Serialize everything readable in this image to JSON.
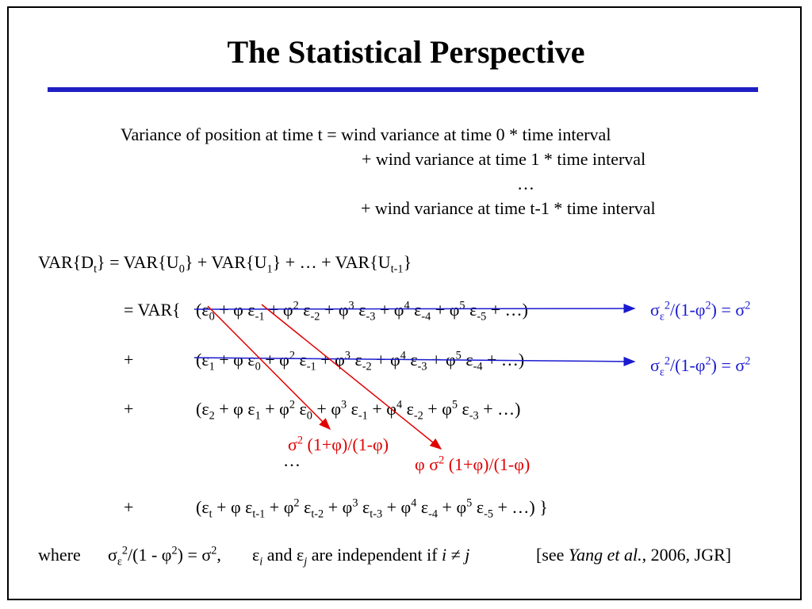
{
  "title": "The Statistical Perspective",
  "colors": {
    "rule": "#1f1fc2",
    "red_annotation": "#e00000",
    "blue_annotation": "#1a1ad0"
  },
  "variance_text": {
    "line1": "Variance of position at time t = wind variance at time 0 * time interval",
    "line2": "+ wind variance at time 1 * time interval",
    "line3": "…",
    "line4": "+ wind variance at time t-1 * time interval"
  },
  "equations": {
    "var_line": {
      "p1": "VAR{D",
      "p1_sub": "t",
      "p2": "} = VAR{U",
      "p2_sub": "0",
      "p3": "} + VAR{U",
      "p3_sub": "1",
      "p4": "} + … +  VAR{U",
      "p4_sub": "t-1",
      "p5": "}"
    },
    "row1_prefix": "= VAR{",
    "row2_prefix": "+",
    "row3_prefix": "+",
    "row4_prefix": "+",
    "ellipsis": "…"
  },
  "annotations": {
    "blue1": "σε2/(1-φ2) = σ2",
    "blue2": "σε2/(1-φ2) = σ2",
    "red1": "σ2 (1+φ)/(1-φ)",
    "red2": "φ σ2 (1+φ)/(1-φ)"
  },
  "footer": {
    "where": "where",
    "formula": "σε2/(1 - φ2) = σ2,",
    "independence": "εi and εj are independent if i ≠ j",
    "citation": "[see Yang et al., 2006, JGR]"
  }
}
